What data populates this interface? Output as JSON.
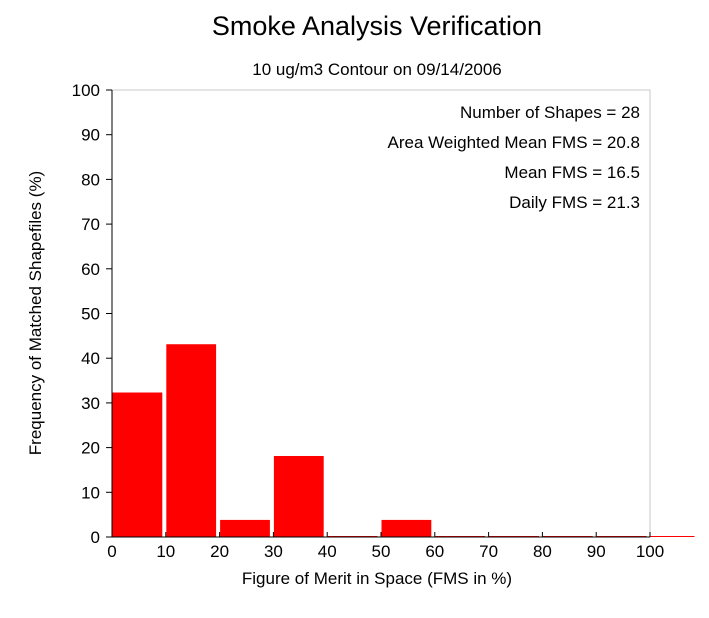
{
  "chart_data": {
    "type": "bar",
    "title": "Smoke Analysis Verification",
    "subtitle": "10 ug/m3 Contour on 09/14/2006",
    "xlabel": "Figure of Merit in Space (FMS in %)",
    "ylabel": "Frequency of Matched Shapefiles (%)",
    "xlim": [
      0,
      100
    ],
    "ylim": [
      0,
      100
    ],
    "x_ticks": [
      "0",
      "10",
      "20",
      "30",
      "40",
      "50",
      "60",
      "70",
      "80",
      "90",
      "100"
    ],
    "y_ticks": [
      "0",
      "10",
      "20",
      "30",
      "40",
      "50",
      "60",
      "70",
      "80",
      "90",
      "100"
    ],
    "bins": [
      {
        "x0": 0,
        "x1": 10,
        "value": 32.1
      },
      {
        "x0": 10,
        "x1": 20,
        "value": 42.9
      },
      {
        "x0": 20,
        "x1": 30,
        "value": 3.6
      },
      {
        "x0": 30,
        "x1": 40,
        "value": 17.9
      },
      {
        "x0": 40,
        "x1": 50,
        "value": 0
      },
      {
        "x0": 50,
        "x1": 60,
        "value": 3.6
      },
      {
        "x0": 60,
        "x1": 70,
        "value": 0
      },
      {
        "x0": 70,
        "x1": 80,
        "value": 0
      },
      {
        "x0": 80,
        "x1": 90,
        "value": 0
      },
      {
        "x0": 90,
        "x1": 100,
        "value": 0
      },
      {
        "x0": 100,
        "x1": 110,
        "value": 0
      }
    ],
    "bar_color": "#ff0000",
    "grid": false,
    "annotations": [
      "Number of Shapes = 28",
      "Area Weighted Mean FMS = 20.8",
      "Mean FMS = 16.5",
      "Daily FMS = 21.3"
    ]
  }
}
